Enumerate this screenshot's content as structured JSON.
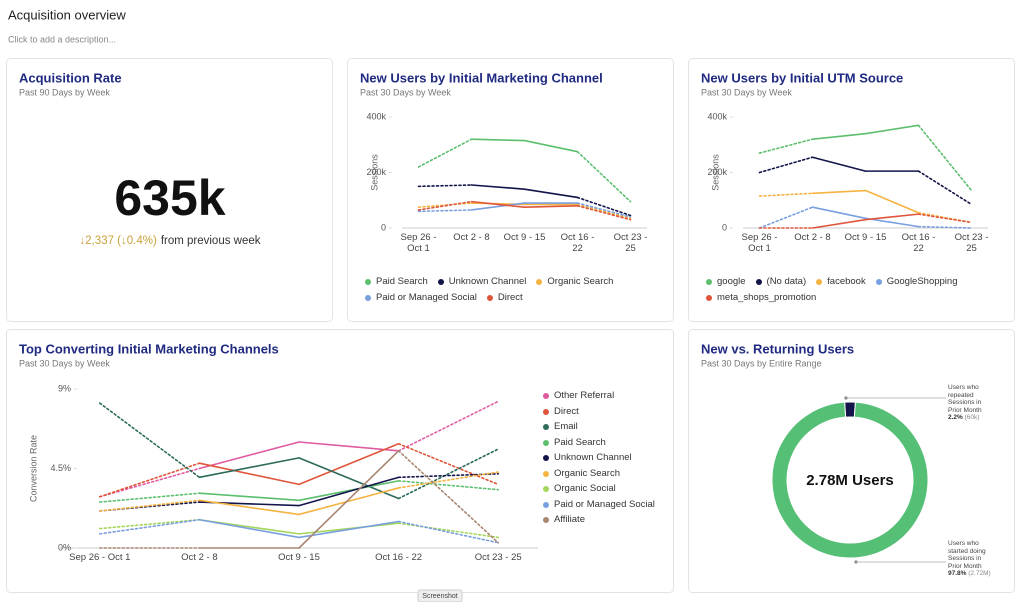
{
  "header": {
    "title": "Acquisition overview",
    "description": "Click to add a description..."
  },
  "kpi": {
    "title": "Acquisition Rate",
    "subtitle": "Past 90 Days by Week",
    "value": "635k",
    "change": "↓2,337 (↓0.4%)",
    "change_suffix": "from previous week"
  },
  "charts": [
    {
      "type": "line",
      "title": "New Users by Initial Marketing Channel",
      "subtitle": "Past 30 Days by Week",
      "y_label": "Sessions",
      "categories": [
        "Sep 26 - Oct 1",
        "Oct 2 - 8",
        "Oct 9 - 15",
        "Oct 16 - 22",
        "Oct 23 - 25"
      ],
      "ylim": [
        0,
        400000
      ],
      "yticks": [
        0,
        {
          "value": 200000,
          "label": "200k"
        },
        {
          "value": 400000,
          "label": "400k"
        }
      ],
      "grid": false,
      "dashed_ends": true,
      "legend": "bottom",
      "series": [
        {
          "name": "Paid Search",
          "color": "#5cbf6e",
          "values": [
            220000,
            320000,
            315000,
            275000,
            95000
          ]
        },
        {
          "name": "Unknown Channel",
          "color": "#12144a",
          "values": [
            150000,
            155000,
            140000,
            110000,
            45000
          ]
        },
        {
          "name": "Organic Search",
          "color": "#f5b342",
          "values": [
            75000,
            90000,
            85000,
            85000,
            35000
          ]
        },
        {
          "name": "Paid or Managed Social",
          "color": "#7a9fe0",
          "values": [
            60000,
            65000,
            90000,
            90000,
            40000
          ]
        },
        {
          "name": "Direct",
          "color": "#e0553a",
          "values": [
            65000,
            95000,
            75000,
            80000,
            30000
          ]
        }
      ]
    },
    {
      "type": "line",
      "title": "New Users by Initial UTM Source",
      "subtitle": "Past 30 Days by Week",
      "y_label": "Sessions",
      "categories": [
        "Sep 26 - Oct 1",
        "Oct 2 - 8",
        "Oct 9 - 15",
        "Oct 16 - 22",
        "Oct 23 - 25"
      ],
      "ylim": [
        0,
        400000
      ],
      "yticks": [
        0,
        {
          "value": 200000,
          "label": "200k"
        },
        {
          "value": 400000,
          "label": "400k"
        }
      ],
      "grid": false,
      "dashed_ends": true,
      "legend": "bottom",
      "series": [
        {
          "name": "google",
          "color": "#5cbf6e",
          "values": [
            270000,
            320000,
            340000,
            370000,
            135000
          ]
        },
        {
          "name": "(No data)",
          "color": "#12144a",
          "values": [
            200000,
            255000,
            205000,
            205000,
            85000
          ]
        },
        {
          "name": "facebook",
          "color": "#f5b342",
          "values": [
            115000,
            125000,
            135000,
            55000,
            20000
          ]
        },
        {
          "name": "GoogleShopping",
          "color": "#7a9fe0",
          "values": [
            0,
            75000,
            35000,
            5000,
            0
          ]
        },
        {
          "name": "meta_shops_promotion",
          "color": "#e0553a",
          "values": [
            0,
            0,
            30000,
            50000,
            20000
          ]
        }
      ]
    },
    {
      "type": "line",
      "title": "Top Converting Initial Marketing Channels",
      "subtitle": "Past 30 Days by Week",
      "y_label": "Conversion Rate",
      "categories": [
        "Sep 26 - Oct 1",
        "Oct 2 - 8",
        "Oct 9 - 15",
        "Oct 16 - 22",
        "Oct 23 - 25"
      ],
      "ylim": [
        0,
        9
      ],
      "yticks": [
        {
          "value": 0,
          "label": "0%"
        },
        {
          "value": 4.5,
          "label": "4.5%"
        },
        {
          "value": 9,
          "label": "9%"
        }
      ],
      "grid": false,
      "dashed_ends": true,
      "legend": "right",
      "series": [
        {
          "name": "Other Referral",
          "color": "#e05aa0",
          "values": [
            2.9,
            4.5,
            6.0,
            5.5,
            8.3
          ]
        },
        {
          "name": "Direct",
          "color": "#e0553a",
          "values": [
            2.9,
            4.8,
            3.6,
            5.9,
            3.6
          ]
        },
        {
          "name": "Email",
          "color": "#2d6b5a",
          "values": [
            8.2,
            4.0,
            5.1,
            2.8,
            5.6
          ]
        },
        {
          "name": "Paid Search",
          "color": "#5cbf6e",
          "values": [
            2.6,
            3.1,
            2.7,
            3.8,
            3.3
          ]
        },
        {
          "name": "Unknown Channel",
          "color": "#12144a",
          "values": [
            2.1,
            2.6,
            2.4,
            4.0,
            4.2
          ]
        },
        {
          "name": "Organic Search",
          "color": "#f5b342",
          "values": [
            2.1,
            2.7,
            1.9,
            3.4,
            4.3
          ]
        },
        {
          "name": "Organic Social",
          "color": "#a3d65a",
          "values": [
            1.1,
            1.6,
            0.8,
            1.4,
            0.6
          ]
        },
        {
          "name": "Paid or Managed Social",
          "color": "#7a9fe0",
          "values": [
            0.8,
            1.6,
            0.6,
            1.5,
            0.3
          ]
        },
        {
          "name": "Affiliate",
          "color": "#a88672",
          "values": [
            0,
            0,
            0,
            5.5,
            0.3
          ]
        }
      ]
    },
    {
      "type": "donut",
      "title": "New vs. Returning Users",
      "subtitle": "Past 30 Days by Entire Range",
      "center_label": "2.78M Users",
      "slices": [
        {
          "name": "Users who repeated Sessions in Prior Month",
          "value": 2.2,
          "value_label": "2.2%",
          "count_label": "(60k)",
          "color": "#12144a"
        },
        {
          "name": "Users who started doing Sessions in Prior Month",
          "value": 97.8,
          "value_label": "97.8%",
          "count_label": "(2.72M)",
          "color": "#55bf75"
        }
      ]
    }
  ],
  "footer_tab": "Screenshot"
}
